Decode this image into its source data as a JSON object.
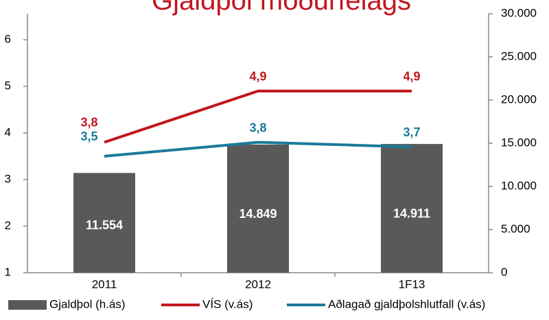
{
  "chart_data": {
    "type": "combo",
    "title": "Gjaldþol móðurfélags",
    "categories": [
      "2011",
      "2012",
      "1F13"
    ],
    "ylim": [
      1,
      6.56
    ],
    "yticks": [
      1,
      2,
      3,
      4,
      5,
      6
    ],
    "y2lim": [
      0,
      30000
    ],
    "y2ticks": [
      0,
      {
        "value": 5000,
        "label": "5.000"
      },
      {
        "value": 10000,
        "label": "10.000"
      },
      {
        "value": 15000,
        "label": "15.000"
      },
      {
        "value": 20000,
        "label": "20.000"
      },
      {
        "value": 25000,
        "label": "25.000"
      },
      {
        "value": 30000,
        "label": "30.000"
      }
    ],
    "series": [
      {
        "name": "Gjaldþol (h.ás)",
        "type": "bar",
        "axis": "y2",
        "color": "#595959",
        "values": [
          11554,
          14849,
          14911
        ],
        "value_labels": [
          "11.554",
          "14.849",
          "14.911"
        ]
      },
      {
        "name": "VÍS (v.ás)",
        "type": "line",
        "color": "#c0171d",
        "values": [
          3.8,
          4.9,
          4.9
        ],
        "value_labels": [
          "3,8",
          "4,9",
          "4,9"
        ]
      },
      {
        "name": "Aðlagað gjaldþolshlutfall (v.ás)",
        "type": "line",
        "color": "#1a7a9a",
        "values": [
          3.5,
          3.8,
          3.7
        ],
        "value_labels": [
          "3,5",
          "3,8",
          "3,7"
        ]
      }
    ]
  }
}
